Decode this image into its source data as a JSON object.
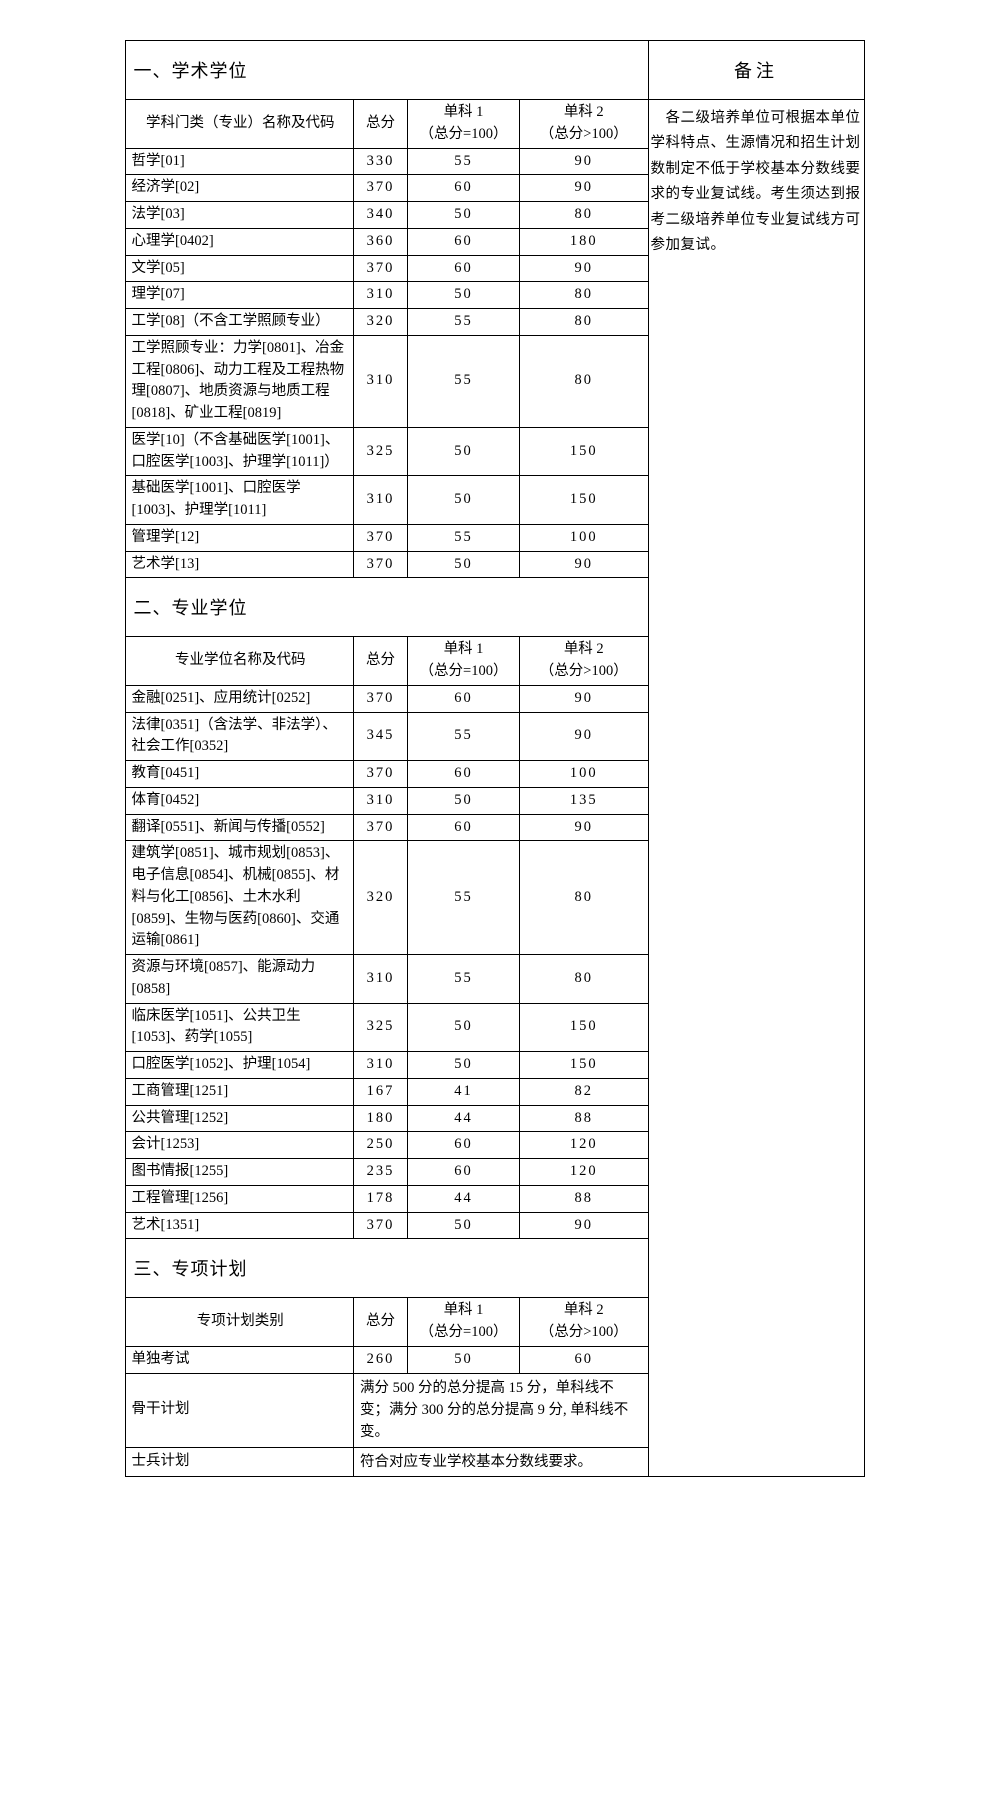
{
  "sections": {
    "s1": {
      "title": "一、学术学位",
      "header_name": "学科门类（专业）名称及代码"
    },
    "s2": {
      "title": "二、专业学位",
      "header_name": "专业学位名称及代码"
    },
    "s3": {
      "title": "三、专项计划",
      "header_name": "专项计划类别"
    }
  },
  "headers": {
    "total": "总分",
    "sub1_l1": "单科 1",
    "sub1_l2": "（总分=100）",
    "sub2_l1": "单科 2",
    "sub2_l2": "（总分>100）",
    "remark": "备注"
  },
  "remark_text": "　各二级培养单位可根据本单位学科特点、生源情况和招生计划数制定不低于学校基本分数线要求的专业复试线。考生须达到报考二级培养单位专业复试线方可参加复试。",
  "table1": [
    {
      "name": "哲学[01]",
      "total": "330",
      "s1": "55",
      "s2": "90"
    },
    {
      "name": "经济学[02]",
      "total": "370",
      "s1": "60",
      "s2": "90"
    },
    {
      "name": "法学[03]",
      "total": "340",
      "s1": "50",
      "s2": "80"
    },
    {
      "name": "心理学[0402]",
      "total": "360",
      "s1": "60",
      "s2": "180"
    },
    {
      "name": "文学[05]",
      "total": "370",
      "s1": "60",
      "s2": "90"
    },
    {
      "name": "理学[07]",
      "total": "310",
      "s1": "50",
      "s2": "80"
    },
    {
      "name": "工学[08]（不含工学照顾专业）",
      "total": "320",
      "s1": "55",
      "s2": "80"
    },
    {
      "name": "工学照顾专业：力学[0801]、冶金工程[0806]、动力工程及工程热物理[0807]、地质资源与地质工程 [0818]、矿业工程[0819]",
      "total": "310",
      "s1": "55",
      "s2": "80"
    },
    {
      "name": "医学[10]（不含基础医学[1001]、口腔医学[1003]、护理学[1011]）",
      "total": "325",
      "s1": "50",
      "s2": "150"
    },
    {
      "name": "基础医学[1001]、口腔医学[1003]、护理学[1011]",
      "total": "310",
      "s1": "50",
      "s2": "150"
    },
    {
      "name": "管理学[12]",
      "total": "370",
      "s1": "55",
      "s2": "100"
    },
    {
      "name": "艺术学[13]",
      "total": "370",
      "s1": "50",
      "s2": "90"
    }
  ],
  "table2": [
    {
      "name": "金融[0251]、应用统计[0252]",
      "total": "370",
      "s1": "60",
      "s2": "90"
    },
    {
      "name": "法律[0351]（含法学、非法学）、社会工作[0352]",
      "total": "345",
      "s1": "55",
      "s2": "90"
    },
    {
      "name": "教育[0451]",
      "total": "370",
      "s1": "60",
      "s2": "100"
    },
    {
      "name": "体育[0452]",
      "total": "310",
      "s1": "50",
      "s2": "135"
    },
    {
      "name": "翻译[0551]、新闻与传播[0552]",
      "total": "370",
      "s1": "60",
      "s2": "90"
    },
    {
      "name": "建筑学[0851]、城市规划[0853]、电子信息[0854]、机械[0855]、材料与化工[0856]、土木水利[0859]、生物与医药[0860]、交通运输[0861]",
      "total": "320",
      "s1": "55",
      "s2": "80"
    },
    {
      "name": "资源与环境[0857]、能源动力[0858]",
      "total": "310",
      "s1": "55",
      "s2": "80"
    },
    {
      "name": "临床医学[1051]、公共卫生[1053]、药学[1055]",
      "total": "325",
      "s1": "50",
      "s2": "150"
    },
    {
      "name": "口腔医学[1052]、护理[1054]",
      "total": "310",
      "s1": "50",
      "s2": "150"
    },
    {
      "name": "工商管理[1251]",
      "total": "167",
      "s1": "41",
      "s2": "82"
    },
    {
      "name": "公共管理[1252]",
      "total": "180",
      "s1": "44",
      "s2": "88"
    },
    {
      "name": "会计[1253]",
      "total": "250",
      "s1": "60",
      "s2": "120"
    },
    {
      "name": "图书情报[1255]",
      "total": "235",
      "s1": "60",
      "s2": "120"
    },
    {
      "name": "工程管理[1256]",
      "total": "178",
      "s1": "44",
      "s2": "88"
    },
    {
      "name": "艺术[1351]",
      "total": "370",
      "s1": "50",
      "s2": "90"
    }
  ],
  "table3": {
    "row1": {
      "name": "单独考试",
      "total": "260",
      "s1": "50",
      "s2": "60"
    },
    "row2": {
      "name": "骨干计划",
      "note": "满分 500 分的总分提高 15 分，单科线不变；满分 300 分的总分提高 9 分, 单科线不变。"
    },
    "row3": {
      "name": "士兵计划",
      "note": "符合对应专业学校基本分数线要求。"
    }
  }
}
